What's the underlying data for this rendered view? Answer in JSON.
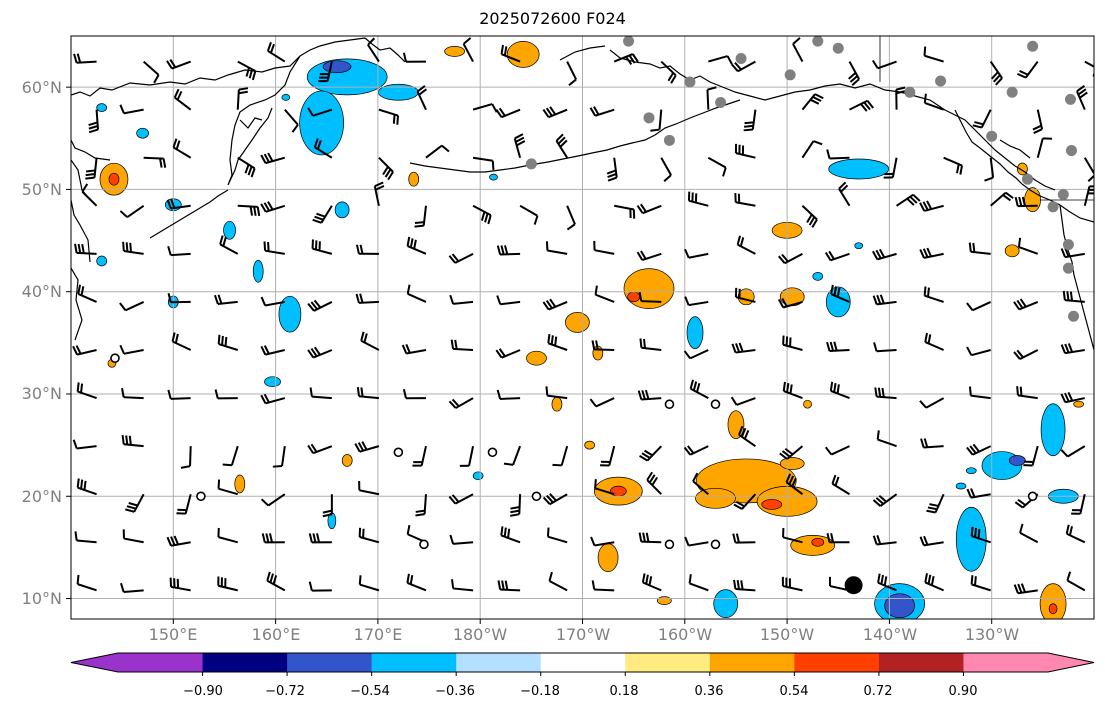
{
  "title": "2025072600 F024",
  "lat_labels": [
    "60°N",
    "50°N",
    "40°N",
    "30°N",
    "20°N",
    "10°N"
  ],
  "lon_labels": [
    "150°E",
    "160°E",
    "170°E",
    "180°W",
    "170°W",
    "160°W",
    "150°W",
    "140°W",
    "130°W"
  ],
  "colorbar": {
    "ticks": [
      "−0.90",
      "−0.72",
      "−0.54",
      "−0.36",
      "−0.18",
      "0.18",
      "0.36",
      "0.54",
      "0.72",
      "0.90"
    ],
    "bins": [
      "#9933cc",
      "#000080",
      "#3355cc",
      "#00bfff",
      "#b3e0ff",
      "#ffffff",
      "#ffeb80",
      "#ffa500",
      "#ff4000",
      "#b22222",
      "#ff88b0"
    ]
  },
  "map": {
    "extent": {
      "lon_min": 140,
      "lon_max": 240,
      "lat_min": 8,
      "lat_max": 65
    },
    "colors": {
      "ocean": "#ffffff",
      "grid": "#b0b0b0",
      "coast": "#000000",
      "station": "#808080"
    }
  },
  "blobs": [
    {
      "lon": 144.2,
      "lat": 51,
      "rx": 14,
      "ry": 16,
      "level": "pos2"
    },
    {
      "lon": 144.2,
      "lat": 51,
      "rx": 5,
      "ry": 6,
      "level": "pos3"
    },
    {
      "lon": 167,
      "lat": 61,
      "rx": 40,
      "ry": 18,
      "level": "neg2"
    },
    {
      "lon": 164.5,
      "lat": 56.5,
      "rx": 22,
      "ry": 32,
      "level": "neg2"
    },
    {
      "lon": 166,
      "lat": 62,
      "rx": 14,
      "ry": 6,
      "level": "neg3"
    },
    {
      "lon": 172,
      "lat": 59.5,
      "rx": 20,
      "ry": 8,
      "level": "neg2"
    },
    {
      "lon": 161,
      "lat": 59,
      "rx": 4,
      "ry": 3,
      "level": "neg2"
    },
    {
      "lon": 177.5,
      "lat": 63.5,
      "rx": 10,
      "ry": 5,
      "level": "pos2"
    },
    {
      "lon": 184.2,
      "lat": 63.2,
      "rx": 16,
      "ry": 13,
      "level": "pos2"
    },
    {
      "lon": 147,
      "lat": 55.5,
      "rx": 6,
      "ry": 5,
      "level": "neg2"
    },
    {
      "lon": 150,
      "lat": 48.5,
      "rx": 8,
      "ry": 6,
      "level": "neg2"
    },
    {
      "lon": 155.5,
      "lat": 46,
      "rx": 6,
      "ry": 9,
      "level": "neg2"
    },
    {
      "lon": 158.3,
      "lat": 42,
      "rx": 5,
      "ry": 11,
      "level": "neg2"
    },
    {
      "lon": 161.4,
      "lat": 37.8,
      "rx": 11,
      "ry": 18,
      "level": "neg2"
    },
    {
      "lon": 150,
      "lat": 39,
      "rx": 5,
      "ry": 6,
      "level": "neg2"
    },
    {
      "lon": 166.5,
      "lat": 48,
      "rx": 7,
      "ry": 8,
      "level": "neg2"
    },
    {
      "lon": 143,
      "lat": 58,
      "rx": 5,
      "ry": 4,
      "level": "neg2"
    },
    {
      "lon": 159.7,
      "lat": 31.2,
      "rx": 8,
      "ry": 5,
      "level": "neg2"
    },
    {
      "lon": 173.5,
      "lat": 51,
      "rx": 5,
      "ry": 7,
      "level": "pos2"
    },
    {
      "lon": 181.3,
      "lat": 51.2,
      "rx": 4,
      "ry": 3,
      "level": "neg2"
    },
    {
      "lon": 196.5,
      "lat": 40.3,
      "rx": 25,
      "ry": 20,
      "level": "pos2"
    },
    {
      "lon": 195,
      "lat": 39.5,
      "rx": 6,
      "ry": 5,
      "level": "pos3"
    },
    {
      "lon": 189.5,
      "lat": 37,
      "rx": 12,
      "ry": 10,
      "level": "pos2"
    },
    {
      "lon": 191.5,
      "lat": 34,
      "rx": 5,
      "ry": 7,
      "level": "pos2"
    },
    {
      "lon": 185.5,
      "lat": 33.5,
      "rx": 10,
      "ry": 7,
      "level": "pos2"
    },
    {
      "lon": 187.5,
      "lat": 29,
      "rx": 5,
      "ry": 7,
      "level": "pos2"
    },
    {
      "lon": 190.7,
      "lat": 25,
      "rx": 5,
      "ry": 4,
      "level": "pos2"
    },
    {
      "lon": 201,
      "lat": 36,
      "rx": 8,
      "ry": 16,
      "level": "neg2"
    },
    {
      "lon": 205,
      "lat": 27,
      "rx": 8,
      "ry": 14,
      "level": "pos2"
    },
    {
      "lon": 206,
      "lat": 39.5,
      "rx": 8,
      "ry": 8,
      "level": "pos2"
    },
    {
      "lon": 210.5,
      "lat": 39.5,
      "rx": 12,
      "ry": 9,
      "level": "pos2"
    },
    {
      "lon": 215,
      "lat": 39,
      "rx": 12,
      "ry": 15,
      "level": "neg2"
    },
    {
      "lon": 210,
      "lat": 46,
      "rx": 15,
      "ry": 8,
      "level": "pos2"
    },
    {
      "lon": 217,
      "lat": 52,
      "rx": 30,
      "ry": 10,
      "level": "neg2"
    },
    {
      "lon": 213,
      "lat": 41.5,
      "rx": 5,
      "ry": 4,
      "level": "neg2"
    },
    {
      "lon": 206,
      "lat": 21.5,
      "rx": 50,
      "ry": 22,
      "level": "pos2"
    },
    {
      "lon": 210,
      "lat": 19.5,
      "rx": 30,
      "ry": 15,
      "level": "pos2"
    },
    {
      "lon": 193.5,
      "lat": 20.5,
      "rx": 24,
      "ry": 14,
      "level": "pos2"
    },
    {
      "lon": 203,
      "lat": 19.8,
      "rx": 20,
      "ry": 10,
      "level": "pos2"
    },
    {
      "lon": 193.5,
      "lat": 20.5,
      "rx": 8,
      "ry": 5,
      "level": "pos3"
    },
    {
      "lon": 208.5,
      "lat": 19.2,
      "rx": 10,
      "ry": 5,
      "level": "pos3"
    },
    {
      "lon": 212.5,
      "lat": 15.2,
      "rx": 22,
      "ry": 10,
      "level": "pos2"
    },
    {
      "lon": 213,
      "lat": 15.5,
      "rx": 6,
      "ry": 4,
      "level": "pos3"
    },
    {
      "lon": 192.5,
      "lat": 14,
      "rx": 10,
      "ry": 14,
      "level": "pos2"
    },
    {
      "lon": 198,
      "lat": 9.8,
      "rx": 7,
      "ry": 4,
      "level": "pos2"
    },
    {
      "lon": 210.5,
      "lat": 23.2,
      "rx": 12,
      "ry": 6,
      "level": "pos2"
    },
    {
      "lon": 236,
      "lat": 9.5,
      "rx": 13,
      "ry": 20,
      "level": "pos2"
    },
    {
      "lon": 236,
      "lat": 9,
      "rx": 4,
      "ry": 5,
      "level": "pos3"
    },
    {
      "lon": 221,
      "lat": 9.5,
      "rx": 25,
      "ry": 20,
      "level": "neg2"
    },
    {
      "lon": 221,
      "lat": 9.3,
      "rx": 15,
      "ry": 12,
      "level": "neg3"
    },
    {
      "lon": 204,
      "lat": 9.5,
      "rx": 12,
      "ry": 14,
      "level": "neg2"
    },
    {
      "lon": 228,
      "lat": 15.8,
      "rx": 15,
      "ry": 32,
      "level": "neg2"
    },
    {
      "lon": 231,
      "lat": 23,
      "rx": 20,
      "ry": 14,
      "level": "neg2"
    },
    {
      "lon": 236,
      "lat": 26.5,
      "rx": 12,
      "ry": 26,
      "level": "neg2"
    },
    {
      "lon": 237,
      "lat": 20,
      "rx": 15,
      "ry": 7,
      "level": "neg2"
    },
    {
      "lon": 232.5,
      "lat": 23.5,
      "rx": 8,
      "ry": 5,
      "level": "neg3"
    },
    {
      "lon": 228,
      "lat": 22.5,
      "rx": 5,
      "ry": 3,
      "level": "neg2"
    },
    {
      "lon": 227,
      "lat": 21,
      "rx": 5,
      "ry": 3,
      "level": "neg2"
    },
    {
      "lon": 233,
      "lat": 52,
      "rx": 5,
      "ry": 6,
      "level": "pos2"
    },
    {
      "lon": 234,
      "lat": 49,
      "rx": 8,
      "ry": 12,
      "level": "pos2"
    },
    {
      "lon": 232,
      "lat": 44,
      "rx": 7,
      "ry": 6,
      "level": "pos2"
    },
    {
      "lon": 167,
      "lat": 23.5,
      "rx": 5,
      "ry": 6,
      "level": "pos2"
    },
    {
      "lon": 156.5,
      "lat": 21.2,
      "rx": 5,
      "ry": 9,
      "level": "pos2"
    },
    {
      "lon": 165.5,
      "lat": 17.6,
      "rx": 4,
      "ry": 8,
      "level": "neg2"
    },
    {
      "lon": 179.8,
      "lat": 22,
      "rx": 5,
      "ry": 4,
      "level": "neg2"
    },
    {
      "lon": 143,
      "lat": 43,
      "rx": 5,
      "ry": 5,
      "level": "neg2"
    },
    {
      "lon": 144,
      "lat": 33,
      "rx": 4,
      "ry": 4,
      "level": "pos2"
    },
    {
      "lon": 238.5,
      "lat": 29,
      "rx": 5,
      "ry": 3,
      "level": "pos2"
    },
    {
      "lon": 212,
      "lat": 29,
      "rx": 4,
      "ry": 4,
      "level": "pos2"
    },
    {
      "lon": 217,
      "lat": 44.5,
      "rx": 4,
      "ry": 3,
      "level": "neg2"
    }
  ],
  "stations": [
    {
      "lon": 185,
      "lat": 52.5
    },
    {
      "lon": 196.5,
      "lat": 57
    },
    {
      "lon": 198.5,
      "lat": 54.8
    },
    {
      "lon": 200.5,
      "lat": 60.5
    },
    {
      "lon": 203.5,
      "lat": 58.5
    },
    {
      "lon": 205.5,
      "lat": 62.8
    },
    {
      "lon": 210.3,
      "lat": 61.2
    },
    {
      "lon": 213,
      "lat": 64.5
    },
    {
      "lon": 215,
      "lat": 63.8
    },
    {
      "lon": 222,
      "lat": 59.5
    },
    {
      "lon": 225,
      "lat": 60.6
    },
    {
      "lon": 230,
      "lat": 55.2
    },
    {
      "lon": 232,
      "lat": 59.5
    },
    {
      "lon": 237.7,
      "lat": 58.8
    },
    {
      "lon": 237.8,
      "lat": 53.8
    },
    {
      "lon": 233.5,
      "lat": 51
    },
    {
      "lon": 237,
      "lat": 49.5
    },
    {
      "lon": 236,
      "lat": 48.3
    },
    {
      "lon": 237.5,
      "lat": 44.6
    },
    {
      "lon": 237.5,
      "lat": 42.3
    },
    {
      "lon": 238,
      "lat": 37.6
    },
    {
      "lon": 194.5,
      "lat": 64.5
    },
    {
      "lon": 234,
      "lat": 64
    }
  ],
  "calms": [
    {
      "lon": 144.3,
      "lat": 33.5
    },
    {
      "lon": 198.5,
      "lat": 29
    },
    {
      "lon": 203,
      "lat": 29
    },
    {
      "lon": 172,
      "lat": 24.3
    },
    {
      "lon": 181.2,
      "lat": 24.3
    },
    {
      "lon": 152.7,
      "lat": 20
    },
    {
      "lon": 185.5,
      "lat": 20
    },
    {
      "lon": 174.5,
      "lat": 15.3
    },
    {
      "lon": 198.5,
      "lat": 15.3
    },
    {
      "lon": 203,
      "lat": 15.3
    },
    {
      "lon": 234,
      "lat": 20
    }
  ],
  "big_dot": {
    "lon": 216.5,
    "lat": 11.3
  }
}
